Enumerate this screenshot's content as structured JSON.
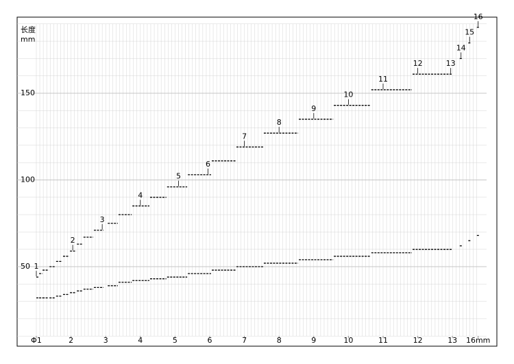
{
  "chart_data": {
    "type": "step-segments",
    "y_label": "长度",
    "y_unit": "mm",
    "ylim": [
      10,
      190
    ],
    "yticks": [
      50,
      100,
      150
    ],
    "xlim": [
      1,
      16
    ],
    "xticks": [
      {
        "value": 1,
        "label": "Φ1"
      },
      2,
      3,
      4,
      5,
      6,
      7,
      8,
      9,
      10,
      11,
      12,
      13,
      {
        "value": 16,
        "label": "16mm"
      }
    ],
    "grid": true,
    "x_start": [
      1.0,
      1.08,
      1.18,
      1.38,
      1.57,
      1.77,
      1.97,
      2.17,
      2.36,
      2.66,
      3.06,
      3.37,
      3.77,
      4.28,
      4.77,
      5.37,
      6.06,
      6.77,
      7.56,
      8.57,
      9.58,
      10.66,
      11.85,
      13.85,
      14.85,
      15.85
    ],
    "x_end": [
      1.06,
      1.18,
      1.36,
      1.55,
      1.75,
      1.95,
      2.15,
      2.34,
      2.64,
      2.94,
      3.35,
      3.75,
      4.26,
      4.75,
      5.35,
      6.04,
      6.75,
      7.54,
      8.55,
      9.56,
      10.64,
      11.83,
      13.0,
      14.15,
      15.15,
      16.15
    ],
    "series": [
      {
        "color": "#000000",
        "values": [
          44,
          46,
          48,
          50,
          53,
          56,
          59,
          63,
          67,
          71,
          75,
          80,
          85,
          90,
          96,
          103,
          111,
          119,
          127,
          135,
          143,
          152,
          161,
          170,
          179,
          188
        ]
      },
      {
        "color": "#000000",
        "values": [
          32,
          32,
          32,
          32,
          33,
          34,
          35,
          36,
          37,
          38,
          39,
          41,
          42,
          43,
          44,
          46,
          48,
          50,
          52,
          54,
          56,
          58,
          60,
          62,
          65,
          68
        ]
      }
    ],
    "annotations": [
      {
        "text": "1",
        "x": 1.0,
        "y": 44
      },
      {
        "text": "2",
        "x": 2.05,
        "y": 59
      },
      {
        "text": "3",
        "x": 2.9,
        "y": 71
      },
      {
        "text": "4",
        "x": 4.0,
        "y": 85
      },
      {
        "text": "5",
        "x": 5.1,
        "y": 96
      },
      {
        "text": "6",
        "x": 5.95,
        "y": 103
      },
      {
        "text": "7",
        "x": 7.0,
        "y": 119
      },
      {
        "text": "8",
        "x": 8.0,
        "y": 127
      },
      {
        "text": "9",
        "x": 9.0,
        "y": 135
      },
      {
        "text": "10",
        "x": 10.0,
        "y": 143
      },
      {
        "text": "11",
        "x": 11.0,
        "y": 152
      },
      {
        "text": "12",
        "x": 12.0,
        "y": 161
      },
      {
        "text": "13",
        "x": 12.95,
        "y": 161
      },
      {
        "text": "14",
        "x": 14.0,
        "y": 170
      },
      {
        "text": "15",
        "x": 15.0,
        "y": 179
      },
      {
        "text": "16",
        "x": 16.0,
        "y": 188
      }
    ]
  }
}
